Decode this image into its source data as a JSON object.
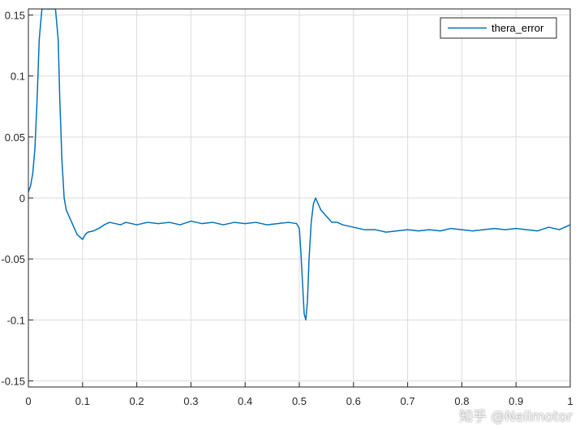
{
  "chart_data": {
    "type": "line",
    "title": "",
    "xlabel": "",
    "ylabel": "",
    "xlim": [
      0,
      1
    ],
    "ylim": [
      -0.155,
      0.155
    ],
    "grid": true,
    "legend_position": "top-right",
    "x_ticks": [
      0,
      0.1,
      0.2,
      0.3,
      0.4,
      0.5,
      0.6,
      0.7,
      0.8,
      0.9,
      1
    ],
    "x_tick_labels": [
      "0",
      "0.1",
      "0.2",
      "0.3",
      "0.4",
      "0.5",
      "0.6",
      "0.7",
      "0.8",
      "0.9",
      "1"
    ],
    "y_ticks": [
      -0.15,
      -0.1,
      -0.05,
      0,
      0.05,
      0.1,
      0.15
    ],
    "y_tick_labels": [
      "-0.15",
      "-0.1",
      "-0.05",
      "0",
      "0.05",
      "0.1",
      "0.15"
    ],
    "series": [
      {
        "name": "thera_error",
        "color": "#0072BD",
        "x": [
          0,
          0.004,
          0.008,
          0.012,
          0.016,
          0.02,
          0.025,
          0.03,
          0.035,
          0.04,
          0.045,
          0.05,
          0.055,
          0.058,
          0.062,
          0.066,
          0.07,
          0.075,
          0.08,
          0.085,
          0.09,
          0.095,
          0.1,
          0.105,
          0.11,
          0.12,
          0.13,
          0.14,
          0.15,
          0.16,
          0.17,
          0.18,
          0.19,
          0.2,
          0.22,
          0.24,
          0.26,
          0.28,
          0.3,
          0.32,
          0.34,
          0.36,
          0.38,
          0.4,
          0.42,
          0.44,
          0.46,
          0.48,
          0.495,
          0.5,
          0.503,
          0.506,
          0.509,
          0.512,
          0.515,
          0.518,
          0.522,
          0.526,
          0.53,
          0.535,
          0.54,
          0.55,
          0.56,
          0.57,
          0.58,
          0.6,
          0.62,
          0.64,
          0.66,
          0.68,
          0.7,
          0.72,
          0.74,
          0.76,
          0.78,
          0.8,
          0.82,
          0.84,
          0.86,
          0.88,
          0.9,
          0.92,
          0.94,
          0.96,
          0.98,
          1.0
        ],
        "values": [
          0.005,
          0.01,
          0.02,
          0.04,
          0.08,
          0.13,
          0.155,
          0.155,
          0.155,
          0.155,
          0.155,
          0.155,
          0.13,
          0.08,
          0.03,
          0.0,
          -0.01,
          -0.015,
          -0.02,
          -0.025,
          -0.03,
          -0.032,
          -0.034,
          -0.03,
          -0.028,
          -0.027,
          -0.025,
          -0.022,
          -0.02,
          -0.021,
          -0.022,
          -0.02,
          -0.021,
          -0.022,
          -0.02,
          -0.021,
          -0.02,
          -0.022,
          -0.019,
          -0.021,
          -0.02,
          -0.022,
          -0.02,
          -0.021,
          -0.02,
          -0.022,
          -0.021,
          -0.02,
          -0.021,
          -0.025,
          -0.045,
          -0.07,
          -0.095,
          -0.1,
          -0.085,
          -0.05,
          -0.02,
          -0.005,
          0.0,
          -0.005,
          -0.01,
          -0.015,
          -0.02,
          -0.02,
          -0.022,
          -0.024,
          -0.026,
          -0.026,
          -0.028,
          -0.027,
          -0.026,
          -0.027,
          -0.026,
          -0.027,
          -0.025,
          -0.026,
          -0.027,
          -0.026,
          -0.025,
          -0.026,
          -0.025,
          -0.026,
          -0.027,
          -0.024,
          -0.026,
          -0.022
        ]
      }
    ]
  },
  "watermark": "知乎 @Neilmotor"
}
